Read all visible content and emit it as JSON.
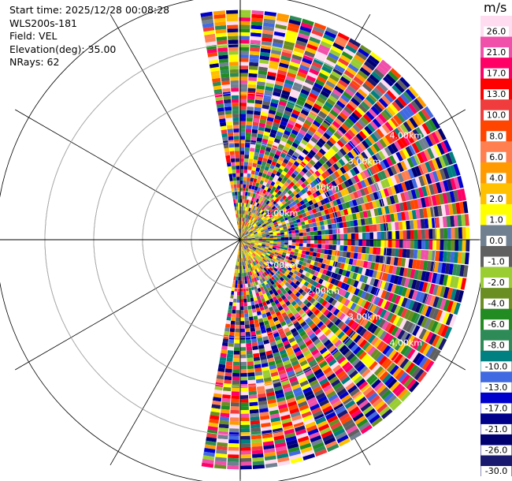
{
  "info": {
    "start_time": "Start time: 2025/12/28 00:08:28",
    "site": "WLS200s-181",
    "field": "Field: VEL",
    "elevation": "Elevation(deg): 35.00",
    "nrays": "NRays: 62"
  },
  "chart_data": {
    "type": "ppi_scan",
    "field": "VEL",
    "units": "m/s",
    "elevation_deg": 35.0,
    "n_rays": 62,
    "azimuth_coverage": "scan sector from approx. 350° through 0°/90° to 190°",
    "range_ring_labels": [
      "1.00km",
      "2.00km",
      "3.00km",
      "4.00km"
    ],
    "max_range_km": 4.7,
    "colorbar": {
      "units": "m/s",
      "min": -30.0,
      "max": 30.0,
      "tick_labels": [
        "26.0",
        "21.0",
        "17.0",
        "13.0",
        "10.0",
        "8.0",
        "6.0",
        "4.0",
        "2.0",
        "1.0",
        "0.0",
        "-1.0",
        "-2.0",
        "-4.0",
        "-6.0",
        "-8.0",
        "-10.0",
        "-13.0",
        "-17.0",
        "-21.0",
        "-26.0",
        "-30.0"
      ],
      "colors": [
        "#FFDCF0",
        "#F050AA",
        "#FF0066",
        "#FF0000",
        "#F03C3C",
        "#FF4500",
        "#FF7F50",
        "#FF9A00",
        "#FFC000",
        "#FFFF00",
        "#708090",
        "#606060",
        "#9ACD32",
        "#6B8E23",
        "#228B22",
        "#2E8B57",
        "#008080",
        "#4169E1",
        "#0000CD",
        "#00008B",
        "#000070",
        "#191970"
      ]
    }
  }
}
